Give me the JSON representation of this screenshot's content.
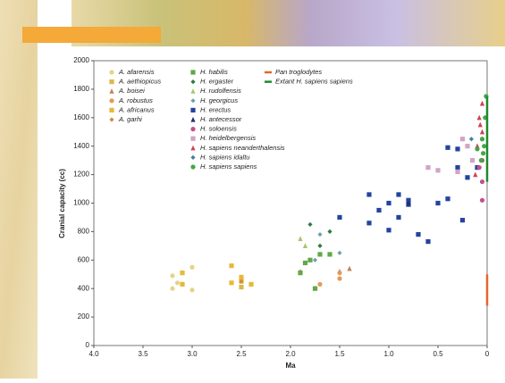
{
  "chart_data": {
    "type": "scatter",
    "ylabel": "Cranial capacity (cc)",
    "xlabel": "Ma",
    "xlim": [
      4.0,
      0
    ],
    "ylim": [
      0,
      2000
    ],
    "xticks": [
      {
        "value": 4,
        "label": "4.0"
      },
      {
        "value": 3.5,
        "label": "3.5"
      },
      {
        "value": 3,
        "label": "3.0"
      },
      {
        "value": 2.5,
        "label": "2.5"
      },
      {
        "value": 2,
        "label": "2.0"
      },
      {
        "value": 1.5,
        "label": "1.5"
      },
      {
        "value": 1,
        "label": "1.0"
      },
      0.5,
      0
    ],
    "yticks": [
      0,
      200,
      400,
      600,
      800,
      1000,
      1200,
      1400,
      1600,
      1800,
      2000
    ],
    "series": [
      {
        "name": "A. afarensis",
        "marker": "circle",
        "color": "#e3d489",
        "x": [
          3.2,
          3.0,
          3.0,
          3.15,
          3.2
        ],
        "values": [
          490,
          550,
          390,
          440,
          400
        ]
      },
      {
        "name": "A. aethiopicus",
        "marker": "square",
        "color": "#d9b94a",
        "x": [
          2.5
        ],
        "values": [
          410
        ]
      },
      {
        "name": "A. boisei",
        "marker": "triangle",
        "color": "#c0805a",
        "x": [
          1.4,
          1.5,
          1.9
        ],
        "values": [
          540,
          520,
          520
        ]
      },
      {
        "name": "A. robustus",
        "marker": "circle",
        "color": "#e39a55",
        "x": [
          1.5,
          1.5,
          1.7
        ],
        "values": [
          470,
          510,
          430
        ]
      },
      {
        "name": "A. africanus",
        "marker": "square",
        "color": "#e6b93a",
        "x": [
          3.1,
          2.6,
          2.5,
          2.5,
          2.4,
          2.6,
          3.1
        ],
        "values": [
          510,
          560,
          480,
          450,
          430,
          440,
          430
        ]
      },
      {
        "name": "A. garhi",
        "marker": "diamond",
        "color": "#d28a45",
        "x": [
          2.5
        ],
        "values": [
          450
        ]
      },
      {
        "name": "H. habilis",
        "marker": "square",
        "color": "#62a845",
        "x": [
          1.85,
          1.9,
          1.7,
          1.6,
          1.8,
          1.75
        ],
        "values": [
          580,
          510,
          640,
          640,
          600,
          400
        ]
      },
      {
        "name": "H. ergaster",
        "marker": "diamond",
        "color": "#2f7a45",
        "x": [
          1.8,
          1.6,
          1.7
        ],
        "values": [
          850,
          800,
          700
        ]
      },
      {
        "name": "H. rudolfensis",
        "marker": "triangle",
        "color": "#a6c864",
        "x": [
          1.9,
          1.85
        ],
        "values": [
          750,
          700
        ]
      },
      {
        "name": "H. georgicus",
        "marker": "diamond",
        "color": "#6fa3a6",
        "x": [
          1.75,
          1.7,
          1.5
        ],
        "values": [
          600,
          780,
          650
        ]
      },
      {
        "name": "H. erectus",
        "marker": "square",
        "color": "#23449e",
        "x": [
          1.5,
          1.2,
          1.1,
          1.0,
          1.0,
          0.9,
          0.8,
          0.7,
          0.6,
          0.5,
          0.4,
          0.3,
          0.25,
          0.2,
          0.1,
          0.3,
          0.4,
          1.2,
          0.8,
          0.9
        ],
        "values": [
          900,
          1060,
          950,
          1000,
          810,
          1060,
          1020,
          780,
          730,
          1000,
          1030,
          1380,
          880,
          1180,
          1250,
          1250,
          1390,
          860,
          990,
          900
        ]
      },
      {
        "name": "H. antecessor",
        "marker": "triangle",
        "color": "#20306e",
        "x": [
          0.8
        ],
        "values": [
          1000
        ]
      },
      {
        "name": "H. soloensis",
        "marker": "circle",
        "color": "#c4508a",
        "x": [
          0.05,
          0.05,
          0.08,
          0.05
        ],
        "values": [
          1150,
          1300,
          1250,
          1020
        ]
      },
      {
        "name": "H. heidelbergensis",
        "marker": "square",
        "color": "#d3a3c6",
        "x": [
          0.6,
          0.5,
          0.3,
          0.25,
          0.2,
          0.15
        ],
        "values": [
          1250,
          1230,
          1220,
          1450,
          1400,
          1300
        ]
      },
      {
        "name": "H. sapiens neanderthalensis",
        "marker": "triangle",
        "color": "#d2404f",
        "x": [
          0.1,
          0.05,
          0.08,
          0.05,
          0.12,
          0.07
        ],
        "values": [
          1400,
          1500,
          1600,
          1700,
          1200,
          1550
        ]
      },
      {
        "name": "H. sapiens idaltu",
        "marker": "diamond",
        "color": "#4282a3",
        "x": [
          0.16
        ],
        "values": [
          1450
        ]
      },
      {
        "name": "H. sapiens sapiens",
        "marker": "circle",
        "color": "#44a646",
        "x": [
          0.03,
          0.05,
          0.02,
          0.04,
          0.01,
          0.06,
          0.1
        ],
        "values": [
          1400,
          1450,
          1600,
          1350,
          1750,
          1300,
          1380
        ]
      },
      {
        "name": "Pan troglodytes",
        "marker": "range",
        "color": "#e4662a",
        "x": [
          0,
          0
        ],
        "values": [
          280,
          500
        ]
      },
      {
        "name": "Extant H. sapiens sapiens",
        "marker": "range",
        "color": "#1d8a2c",
        "x": [
          0,
          0
        ],
        "values": [
          1150,
          1750
        ]
      }
    ]
  }
}
